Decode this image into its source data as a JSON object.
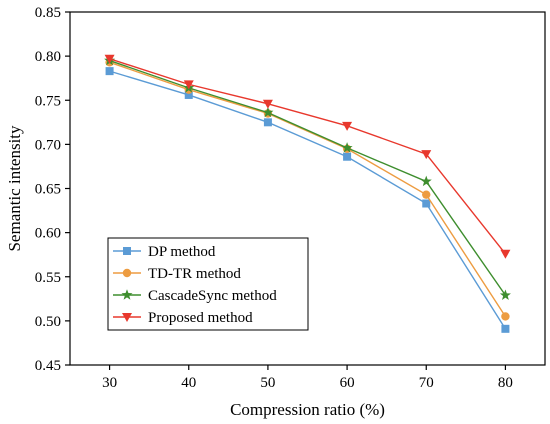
{
  "chart_data": {
    "type": "line",
    "title": "",
    "xlabel": "Compression ratio (%)",
    "ylabel": "Semantic intensity",
    "x": [
      30,
      40,
      50,
      60,
      70,
      80
    ],
    "xticks": [
      "30",
      "40",
      "50",
      "60",
      "70",
      "80"
    ],
    "xlim": [
      25,
      85
    ],
    "ylim": [
      0.45,
      0.85
    ],
    "yticks": [
      "0.45",
      "0.50",
      "0.55",
      "0.60",
      "0.65",
      "0.70",
      "0.75",
      "0.80",
      "0.85"
    ],
    "grid": false,
    "legend_position": "bottom-left",
    "series": [
      {
        "name": "DP method",
        "color": "#5b9bd5",
        "marker": "square",
        "values": [
          0.783,
          0.756,
          0.725,
          0.686,
          0.633,
          0.491
        ]
      },
      {
        "name": "TD-TR method",
        "color": "#ed9c41",
        "marker": "circle",
        "values": [
          0.793,
          0.762,
          0.735,
          0.695,
          0.643,
          0.505
        ]
      },
      {
        "name": "CascadeSync method",
        "color": "#3e8e2e",
        "marker": "star",
        "values": [
          0.795,
          0.764,
          0.736,
          0.696,
          0.658,
          0.529
        ]
      },
      {
        "name": "Proposed method",
        "color": "#e8382d",
        "marker": "triangle-down",
        "values": [
          0.797,
          0.768,
          0.746,
          0.721,
          0.689,
          0.576
        ]
      }
    ]
  }
}
